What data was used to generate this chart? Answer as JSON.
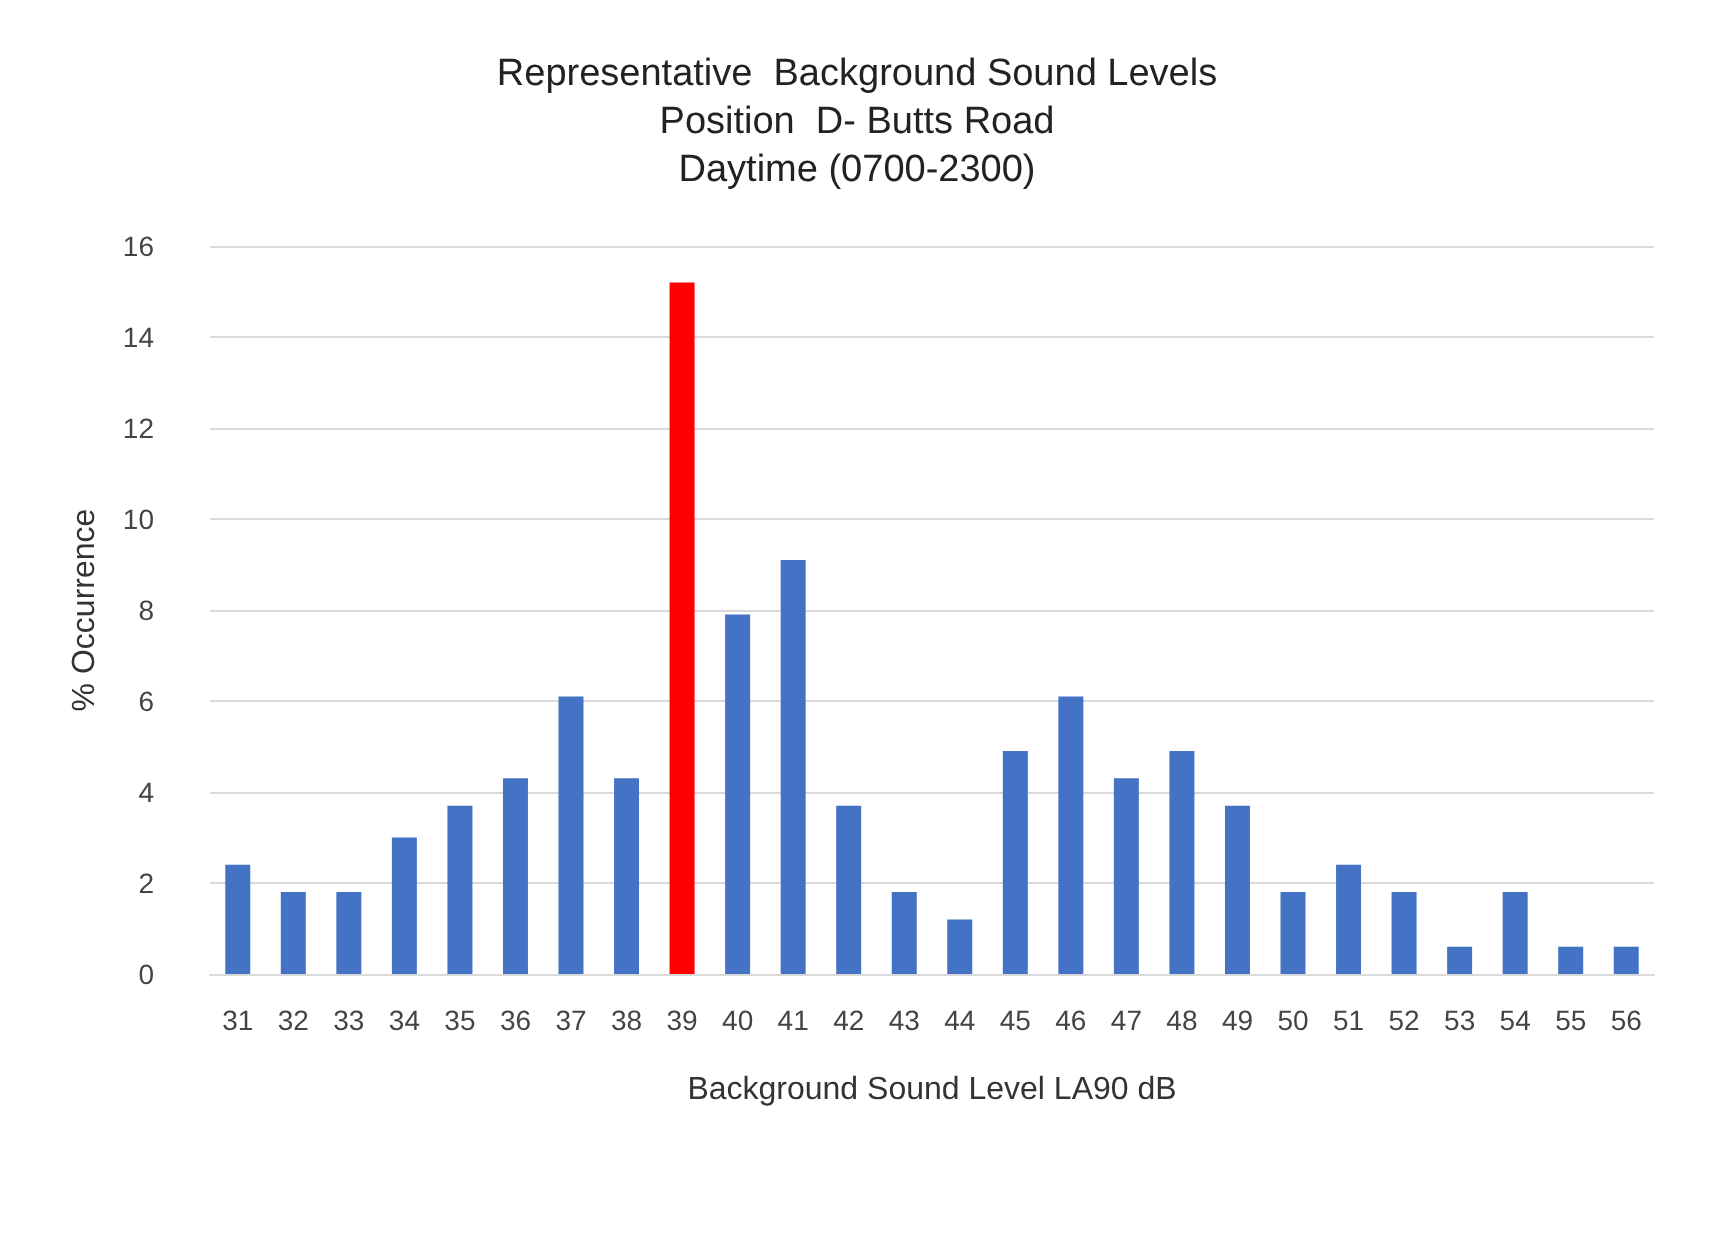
{
  "chart_data": {
    "type": "bar",
    "title": "Representative  Background Sound Levels\nPosition  D- Butts Road\nDaytime (0700-2300)",
    "xlabel": "Background Sound Level LA90 dB",
    "ylabel": "% Occurrence",
    "categories": [
      "31",
      "32",
      "33",
      "34",
      "35",
      "36",
      "37",
      "38",
      "39",
      "40",
      "41",
      "42",
      "43",
      "44",
      "45",
      "46",
      "47",
      "48",
      "49",
      "50",
      "51",
      "52",
      "53",
      "54",
      "55",
      "56"
    ],
    "values": [
      2.4,
      1.8,
      1.8,
      3.0,
      3.7,
      4.3,
      6.1,
      4.3,
      15.2,
      7.9,
      9.1,
      3.7,
      1.8,
      1.2,
      4.9,
      6.1,
      4.3,
      4.9,
      3.7,
      1.8,
      2.4,
      1.8,
      0.6,
      1.8,
      0.6,
      0.6
    ],
    "colors": [
      "#4472c4",
      "#4472c4",
      "#4472c4",
      "#4472c4",
      "#4472c4",
      "#4472c4",
      "#4472c4",
      "#4472c4",
      "#ff0000",
      "#4472c4",
      "#4472c4",
      "#4472c4",
      "#4472c4",
      "#4472c4",
      "#4472c4",
      "#4472c4",
      "#4472c4",
      "#4472c4",
      "#4472c4",
      "#4472c4",
      "#4472c4",
      "#4472c4",
      "#4472c4",
      "#4472c4",
      "#4472c4",
      "#4472c4"
    ],
    "ylim": [
      0,
      16
    ],
    "yticks": [
      0,
      2,
      4,
      6,
      8,
      10,
      12,
      14,
      16
    ],
    "grid": "y"
  }
}
